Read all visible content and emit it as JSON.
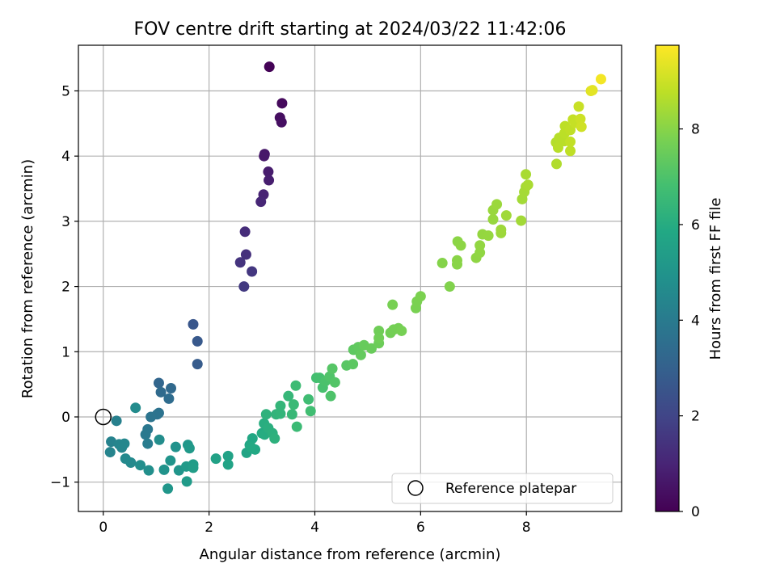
{
  "chart_data": {
    "type": "scatter",
    "title": "FOV centre drift starting at 2024/03/22 11:42:06",
    "xlabel": "Angular distance from reference (arcmin)",
    "ylabel": "Rotation from reference (arcmin)",
    "xlim": [
      -0.47,
      9.8
    ],
    "ylim": [
      -1.45,
      5.7
    ],
    "xticks": [
      0,
      2,
      4,
      6,
      8
    ],
    "xtick_labels": [
      "0",
      "2",
      "4",
      "6",
      "8"
    ],
    "yticks": [
      -1,
      0,
      1,
      2,
      3,
      4,
      5
    ],
    "ytick_labels": [
      "−1",
      "0",
      "1",
      "2",
      "3",
      "4",
      "5"
    ],
    "grid": true,
    "colormap": "viridis",
    "colorbar": {
      "label": "Hours from first FF file",
      "range": [
        0,
        9.75
      ],
      "ticks": [
        0,
        2,
        4,
        6,
        8
      ],
      "tick_labels": [
        "0",
        "2",
        "4",
        "6",
        "8"
      ]
    },
    "legend": {
      "position": "lower-right",
      "entries": [
        "Reference platepar"
      ]
    },
    "reference_point": {
      "x": 0,
      "y": 0
    },
    "series": [
      {
        "points": [
          [
            3.14,
            5.37,
            0.05
          ],
          [
            3.38,
            4.81,
            0.25
          ],
          [
            3.34,
            4.59,
            0.35
          ],
          [
            3.37,
            4.52,
            0.4
          ],
          [
            3.05,
            4.03,
            0.6
          ],
          [
            3.04,
            4.0,
            0.65
          ],
          [
            3.12,
            3.76,
            0.75
          ],
          [
            3.13,
            3.63,
            0.8
          ],
          [
            3.03,
            3.41,
            0.95
          ],
          [
            2.98,
            3.3,
            1.05
          ],
          [
            2.68,
            2.84,
            1.25
          ],
          [
            2.7,
            2.49,
            1.35
          ],
          [
            2.59,
            2.37,
            1.45
          ],
          [
            2.81,
            2.23,
            1.55
          ],
          [
            2.66,
            2.0,
            1.65
          ],
          [
            1.7,
            1.42,
            2.6
          ],
          [
            1.78,
            1.16,
            2.7
          ],
          [
            1.78,
            0.81,
            2.8
          ],
          [
            1.05,
            0.52,
            3.2
          ],
          [
            1.28,
            0.44,
            3.3
          ],
          [
            1.09,
            0.38,
            3.35
          ],
          [
            1.24,
            0.28,
            3.45
          ],
          [
            1.05,
            0.06,
            3.65
          ],
          [
            1.02,
            0.04,
            3.7
          ],
          [
            0.9,
            0.0,
            3.75
          ],
          [
            0.84,
            -0.19,
            3.85
          ],
          [
            0.8,
            -0.27,
            3.95
          ],
          [
            0.84,
            -0.41,
            4.05
          ],
          [
            0.25,
            -0.06,
            4.2
          ],
          [
            0.15,
            -0.38,
            4.3
          ],
          [
            0.13,
            -0.54,
            4.35
          ],
          [
            0.3,
            -0.42,
            4.4
          ],
          [
            0.35,
            -0.47,
            4.45
          ],
          [
            0.4,
            -0.41,
            4.5
          ],
          [
            0.42,
            -0.64,
            4.55
          ],
          [
            0.52,
            -0.7,
            4.6
          ],
          [
            0.61,
            0.14,
            4.65
          ],
          [
            1.06,
            -0.35,
            4.7
          ],
          [
            0.7,
            -0.74,
            4.75
          ],
          [
            0.86,
            -0.82,
            4.8
          ],
          [
            1.37,
            -0.46,
            4.9
          ],
          [
            1.15,
            -0.81,
            4.95
          ],
          [
            1.27,
            -0.67,
            5.0
          ],
          [
            1.43,
            -0.82,
            5.05
          ],
          [
            1.22,
            -1.1,
            5.1
          ],
          [
            1.6,
            -0.43,
            5.15
          ],
          [
            1.63,
            -0.48,
            5.2
          ],
          [
            1.57,
            -0.76,
            5.25
          ],
          [
            1.58,
            -0.99,
            5.3
          ],
          [
            1.7,
            -0.73,
            5.35
          ],
          [
            1.7,
            -0.78,
            5.4
          ],
          [
            2.13,
            -0.64,
            5.55
          ],
          [
            2.36,
            -0.6,
            5.6
          ],
          [
            2.36,
            -0.73,
            5.65
          ],
          [
            2.71,
            -0.55,
            5.7
          ],
          [
            2.77,
            -0.43,
            5.75
          ],
          [
            2.82,
            -0.33,
            5.8
          ],
          [
            2.87,
            -0.5,
            5.85
          ],
          [
            2.79,
            -0.46,
            5.9
          ],
          [
            3.0,
            -0.25,
            5.95
          ],
          [
            3.05,
            -0.27,
            6.0
          ],
          [
            3.04,
            -0.1,
            6.05
          ],
          [
            3.12,
            -0.17,
            6.1
          ],
          [
            3.2,
            -0.25,
            6.15
          ],
          [
            3.24,
            -0.33,
            6.2
          ],
          [
            3.08,
            0.04,
            6.25
          ],
          [
            3.27,
            0.04,
            6.3
          ],
          [
            3.35,
            0.05,
            6.35
          ],
          [
            3.35,
            0.17,
            6.4
          ],
          [
            3.5,
            0.32,
            6.45
          ],
          [
            3.57,
            0.04,
            6.5
          ],
          [
            3.6,
            0.19,
            6.55
          ],
          [
            3.66,
            -0.15,
            6.6
          ],
          [
            3.64,
            0.48,
            6.65
          ],
          [
            3.88,
            0.27,
            6.7
          ],
          [
            3.92,
            0.09,
            6.75
          ],
          [
            4.03,
            0.6,
            6.8
          ],
          [
            4.09,
            0.6,
            6.85
          ],
          [
            4.15,
            0.45,
            6.9
          ],
          [
            4.2,
            0.55,
            6.95
          ],
          [
            4.3,
            0.32,
            7.0
          ],
          [
            4.28,
            0.62,
            7.05
          ],
          [
            4.38,
            0.53,
            7.1
          ],
          [
            4.33,
            0.74,
            7.15
          ],
          [
            4.6,
            0.79,
            7.2
          ],
          [
            4.72,
            0.81,
            7.25
          ],
          [
            4.73,
            1.03,
            7.3
          ],
          [
            4.82,
            1.07,
            7.35
          ],
          [
            4.87,
            0.95,
            7.4
          ],
          [
            4.93,
            1.1,
            7.45
          ],
          [
            5.07,
            1.05,
            7.5
          ],
          [
            5.21,
            1.13,
            7.55
          ],
          [
            5.21,
            1.32,
            7.6
          ],
          [
            5.21,
            1.21,
            7.62
          ],
          [
            5.43,
            1.29,
            7.65
          ],
          [
            5.49,
            1.34,
            7.68
          ],
          [
            5.58,
            1.36,
            7.7
          ],
          [
            5.64,
            1.32,
            7.72
          ],
          [
            5.47,
            1.72,
            7.75
          ],
          [
            5.91,
            1.67,
            7.78
          ],
          [
            5.93,
            1.77,
            7.8
          ],
          [
            6.0,
            1.85,
            7.82
          ],
          [
            6.55,
            2.0,
            7.9
          ],
          [
            6.41,
            2.36,
            7.95
          ],
          [
            6.69,
            2.34,
            8.0
          ],
          [
            6.69,
            2.4,
            8.02
          ],
          [
            6.7,
            2.69,
            8.05
          ],
          [
            6.76,
            2.63,
            8.08
          ],
          [
            7.05,
            2.44,
            8.1
          ],
          [
            7.12,
            2.52,
            8.12
          ],
          [
            7.12,
            2.63,
            8.15
          ],
          [
            7.17,
            2.8,
            8.18
          ],
          [
            7.28,
            2.78,
            8.2
          ],
          [
            7.37,
            3.03,
            8.22
          ],
          [
            7.37,
            3.17,
            8.25
          ],
          [
            7.44,
            3.26,
            8.28
          ],
          [
            7.52,
            2.82,
            8.3
          ],
          [
            7.52,
            2.87,
            8.32
          ],
          [
            7.62,
            3.09,
            8.35
          ],
          [
            7.9,
            3.01,
            8.38
          ],
          [
            7.92,
            3.34,
            8.4
          ],
          [
            7.96,
            3.45,
            8.42
          ],
          [
            7.99,
            3.53,
            8.45
          ],
          [
            7.99,
            3.72,
            8.48
          ],
          [
            8.03,
            3.56,
            8.5
          ],
          [
            8.57,
            3.88,
            8.6
          ],
          [
            8.56,
            4.21,
            8.65
          ],
          [
            8.62,
            4.28,
            8.68
          ],
          [
            8.6,
            4.13,
            8.7
          ],
          [
            8.72,
            4.23,
            8.72
          ],
          [
            8.72,
            4.35,
            8.75
          ],
          [
            8.73,
            4.46,
            8.78
          ],
          [
            8.83,
            4.08,
            8.8
          ],
          [
            8.83,
            4.4,
            8.82
          ],
          [
            8.83,
            4.22,
            8.85
          ],
          [
            8.88,
            4.56,
            8.88
          ],
          [
            8.92,
            4.51,
            8.9
          ],
          [
            8.99,
            4.76,
            8.95
          ],
          [
            9.02,
            4.57,
            9.0
          ],
          [
            9.04,
            4.45,
            9.05
          ],
          [
            9.22,
            5.0,
            9.3
          ],
          [
            9.25,
            5.01,
            9.35
          ],
          [
            9.41,
            5.18,
            9.6
          ]
        ]
      }
    ]
  }
}
